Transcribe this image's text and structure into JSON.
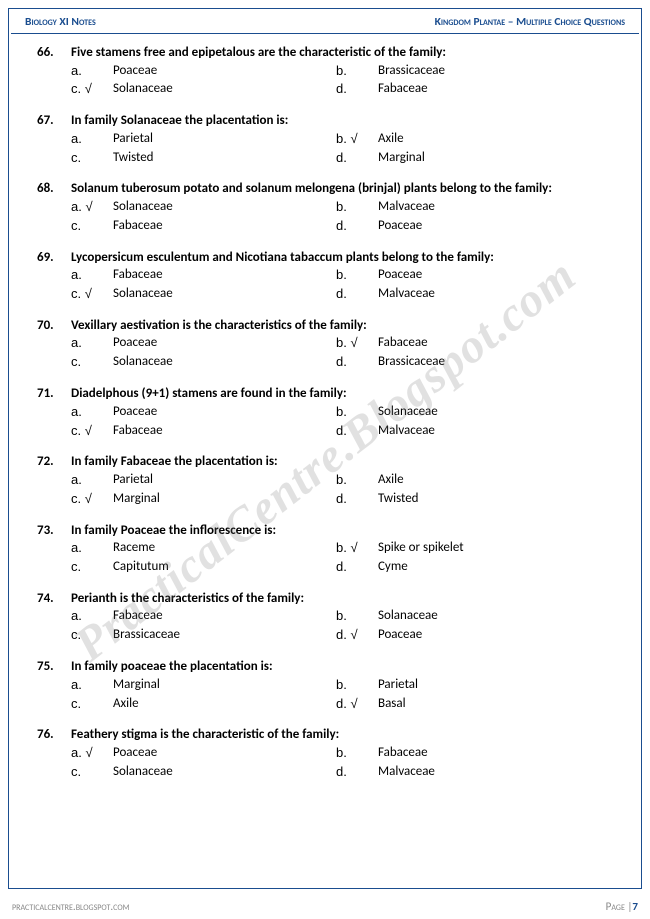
{
  "header": {
    "left": "Biology XI Notes",
    "right": "Kingdom Plantae – Multiple Choice Questions"
  },
  "watermark": "PracticalCentre.Blogspot.com",
  "footer": {
    "site": "practicalcentre.blogspot.com",
    "page_label": "Page |",
    "page_num": "7"
  },
  "questions": [
    {
      "num": "66.",
      "text": "Five stamens free and epipetalous are the characteristic of the family:",
      "justify": false,
      "opts": [
        {
          "l": "a.",
          "t": "Poaceae"
        },
        {
          "l": "b.",
          "t": "Brassicaceae"
        },
        {
          "l": "c. √",
          "t": "Solanaceae"
        },
        {
          "l": "d.",
          "t": "Fabaceae"
        }
      ]
    },
    {
      "num": "67.",
      "text": "In family Solanaceae the placentation is:",
      "justify": false,
      "opts": [
        {
          "l": "a.",
          "t": "Parietal"
        },
        {
          "l": "b. √",
          "t": "Axile"
        },
        {
          "l": "c.",
          "t": "Twisted"
        },
        {
          "l": "d.",
          "t": "Marginal"
        }
      ]
    },
    {
      "num": "68.",
      "text": "Solanum tuberosum potato and solanum melongena (brinjal) plants belong to the family:",
      "justify": true,
      "opts": [
        {
          "l": "a. √",
          "t": "Solanaceae"
        },
        {
          "l": "b.",
          "t": "Malvaceae"
        },
        {
          "l": "c.",
          "t": "Fabaceae"
        },
        {
          "l": "d.",
          "t": "Poaceae"
        }
      ]
    },
    {
      "num": "69.",
      "text": "Lycopersicum esculentum and Nicotiana tabaccum plants belong to the family:",
      "justify": false,
      "opts": [
        {
          "l": "a.",
          "t": "Fabaceae"
        },
        {
          "l": "b.",
          "t": "Poaceae"
        },
        {
          "l": "c. √",
          "t": "Solanaceae"
        },
        {
          "l": "d.",
          "t": "Malvaceae"
        }
      ]
    },
    {
      "num": "70.",
      "text": "Vexillary aestivation is the characteristics of the family:",
      "justify": false,
      "opts": [
        {
          "l": "a.",
          "t": "Poaceae"
        },
        {
          "l": "b. √",
          "t": "Fabaceae"
        },
        {
          "l": "c.",
          "t": "Solanaceae"
        },
        {
          "l": "d.",
          "t": "Brassicaceae"
        }
      ]
    },
    {
      "num": "71.",
      "text": "Diadelphous (9+1) stamens are found in the family:",
      "justify": false,
      "opts": [
        {
          "l": "a.",
          "t": "Poaceae"
        },
        {
          "l": "b.",
          "t": "Solanaceae"
        },
        {
          "l": "c. √",
          "t": "Fabaceae"
        },
        {
          "l": "d.",
          "t": "Malvaceae"
        }
      ]
    },
    {
      "num": "72.",
      "text": "In family Fabaceae the placentation is:",
      "justify": false,
      "opts": [
        {
          "l": "a.",
          "t": "Parietal"
        },
        {
          "l": "b.",
          "t": "Axile"
        },
        {
          "l": "c. √",
          "t": "Marginal"
        },
        {
          "l": "d.",
          "t": "Twisted"
        }
      ]
    },
    {
      "num": "73.",
      "text": "In family Poaceae the inflorescence is:",
      "justify": false,
      "opts": [
        {
          "l": "a.",
          "t": "Raceme"
        },
        {
          "l": "b. √",
          "t": "Spike or spikelet"
        },
        {
          "l": "c.",
          "t": "Capitutum"
        },
        {
          "l": "d.",
          "t": "Cyme"
        }
      ]
    },
    {
      "num": "74.",
      "text": "Perianth is the characteristics of the family:",
      "justify": false,
      "opts": [
        {
          "l": "a.",
          "t": "Fabaceae"
        },
        {
          "l": "b.",
          "t": "Solanaceae"
        },
        {
          "l": "c.",
          "t": "Brassicaceae"
        },
        {
          "l": "d. √",
          "t": "Poaceae"
        }
      ]
    },
    {
      "num": "75.",
      "text": "In family poaceae the placentation is:",
      "justify": false,
      "opts": [
        {
          "l": "a.",
          "t": "Marginal"
        },
        {
          "l": "b.",
          "t": "Parietal"
        },
        {
          "l": "c.",
          "t": "Axile"
        },
        {
          "l": "d. √",
          "t": "Basal"
        }
      ]
    },
    {
      "num": "76.",
      "text": "Feathery stigma is the characteristic of the family:",
      "justify": false,
      "opts": [
        {
          "l": "a. √",
          "t": "Poaceae"
        },
        {
          "l": "b.",
          "t": "Fabaceae"
        },
        {
          "l": "c.",
          "t": "Solanaceae"
        },
        {
          "l": "d.",
          "t": "Malvaceae"
        }
      ]
    }
  ]
}
